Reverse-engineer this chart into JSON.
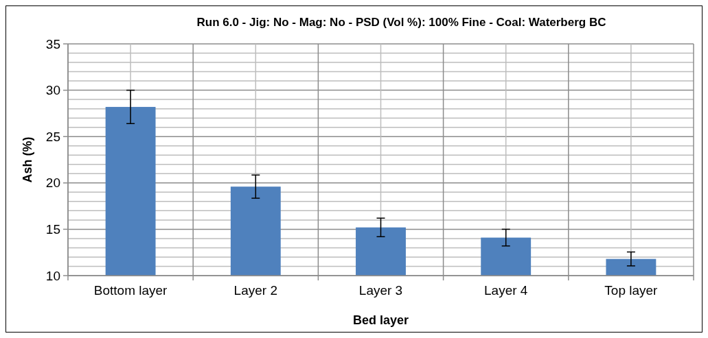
{
  "chart_data": {
    "type": "bar",
    "title": "Run 6.0 - Jig: No - Mag: No - PSD (Vol %): 100% Fine - Coal: Waterberg BC",
    "xlabel": "Bed layer",
    "ylabel": "Ash (%)",
    "categories": [
      "Bottom layer",
      "Layer 2",
      "Layer 3",
      "Layer 4",
      "Top layer"
    ],
    "values": [
      28.2,
      19.6,
      15.2,
      14.1,
      11.8
    ],
    "errors": [
      1.8,
      1.25,
      1.0,
      0.9,
      0.75
    ],
    "color": "#4f81bd",
    "ylim": [
      10,
      35
    ],
    "yticks": [
      10,
      {
        "value": 11,
        "label": null
      },
      {
        "value": 12,
        "label": null
      },
      {
        "value": 13,
        "label": null
      },
      {
        "value": 14,
        "label": null
      },
      15,
      {
        "value": 16,
        "label": null
      },
      {
        "value": 17,
        "label": null
      },
      {
        "value": 18,
        "label": null
      },
      {
        "value": 19,
        "label": null
      },
      20,
      {
        "value": 21,
        "label": null
      },
      {
        "value": 22,
        "label": null
      },
      {
        "value": 23,
        "label": null
      },
      {
        "value": 24,
        "label": null
      },
      25,
      {
        "value": 26,
        "label": null
      },
      {
        "value": 27,
        "label": null
      },
      {
        "value": 28,
        "label": null
      },
      {
        "value": 29,
        "label": null
      },
      30,
      {
        "value": 31,
        "label": null
      },
      {
        "value": 32,
        "label": null
      },
      {
        "value": 33,
        "label": null
      },
      {
        "value": 34,
        "label": null
      },
      35
    ],
    "grid": true
  }
}
